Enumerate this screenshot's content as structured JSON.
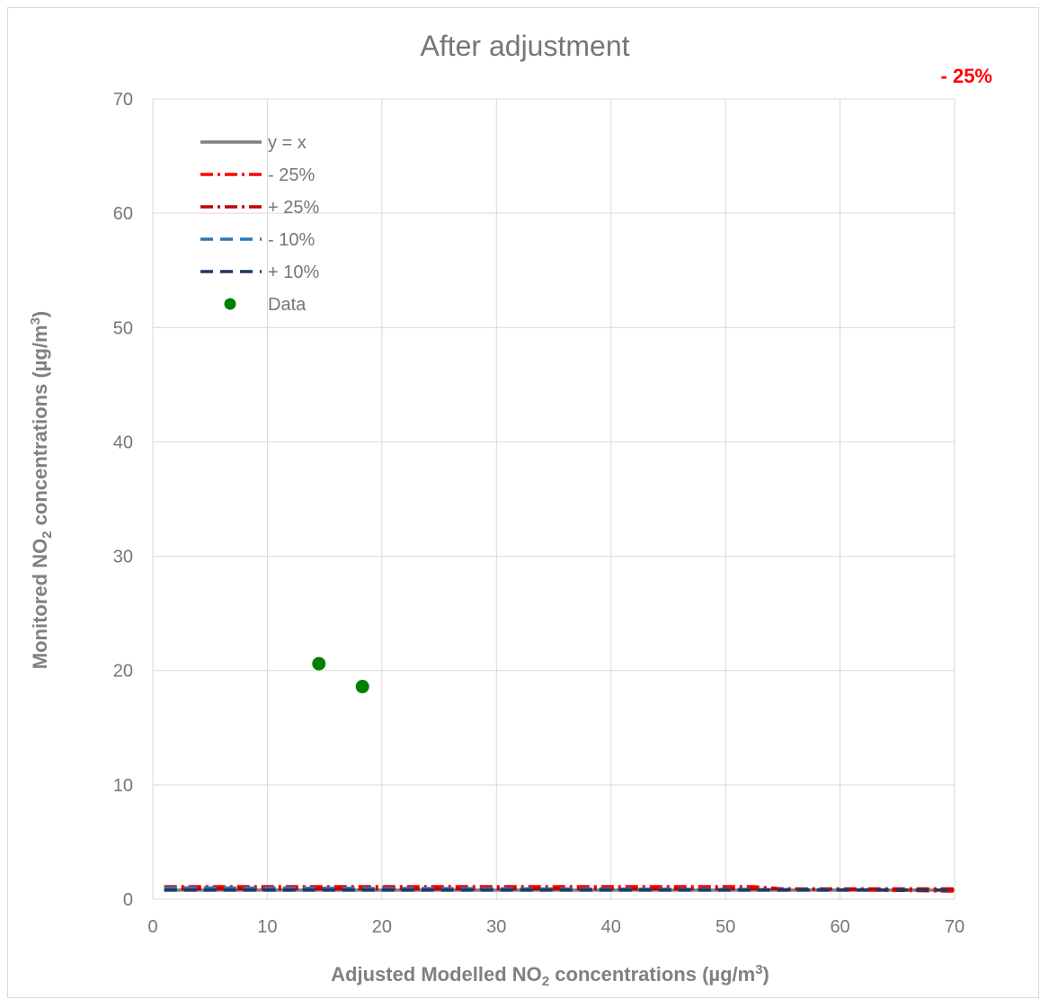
{
  "chart_data": {
    "type": "scatter",
    "title": "After adjustment",
    "annotation": "- 25%",
    "xlabel_parts": [
      "Adjusted Modelled NO",
      "2",
      " concentrations (µg/m",
      "3",
      ")"
    ],
    "ylabel_parts": [
      "Monitored NO",
      "2",
      " concentrations (µg/m",
      "3",
      ")"
    ],
    "xlim": [
      0,
      70
    ],
    "ylim": [
      0,
      70
    ],
    "x_ticks": [
      0,
      10,
      20,
      30,
      40,
      50,
      60,
      70
    ],
    "y_ticks": [
      0,
      10,
      20,
      30,
      40,
      50,
      60,
      70
    ],
    "grid": true,
    "legend_position": "top-left",
    "series": [
      {
        "name": "y = x",
        "kind": "line",
        "style": "solid",
        "color": "#7f7f7f",
        "points": [
          [
            1,
            0.8
          ],
          [
            70,
            0.8
          ]
        ]
      },
      {
        "name": "- 25%",
        "kind": "line",
        "style": "dashdot",
        "color": "#ff0000",
        "points": [
          [
            1,
            1.1
          ],
          [
            52.5,
            1.1
          ],
          [
            55,
            0.9
          ],
          [
            70,
            0.7
          ]
        ]
      },
      {
        "name": "+ 25%",
        "kind": "line",
        "style": "dashdot",
        "color": "#c00000",
        "points": [
          [
            1,
            0.9
          ],
          [
            70,
            0.9
          ]
        ]
      },
      {
        "name": "- 10%",
        "kind": "line",
        "style": "dashed",
        "color": "#2e75b6",
        "points": [
          [
            1,
            1.0
          ],
          [
            70,
            0.8
          ]
        ]
      },
      {
        "name": "+ 10%",
        "kind": "line",
        "style": "dashed",
        "color": "#1f3864",
        "points": [
          [
            1,
            0.8
          ],
          [
            70,
            0.8
          ]
        ]
      },
      {
        "name": "Data",
        "kind": "scatter",
        "color": "#008000",
        "points": [
          [
            14.5,
            20.6
          ],
          [
            18.3,
            18.6
          ]
        ]
      }
    ]
  }
}
